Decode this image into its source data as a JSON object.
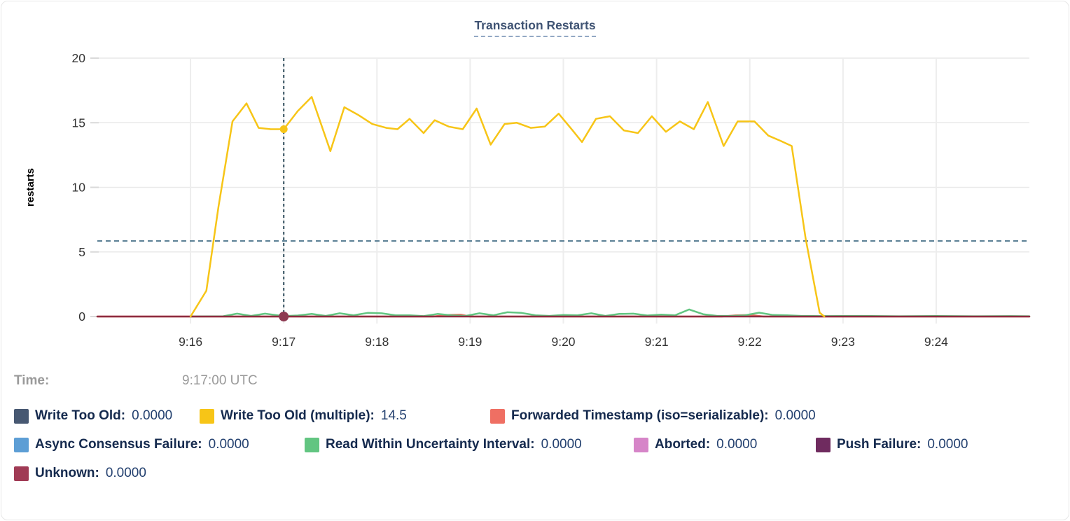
{
  "title": "Transaction Restarts",
  "tooltip": {
    "time_label": "Time:",
    "time_value": "9:17:00 UTC"
  },
  "legend": {
    "rows": [
      [
        {
          "label": "Write Too Old:",
          "value": "0.0000",
          "color": "#475872"
        },
        {
          "label": "Write Too Old (multiple):",
          "value": "14.5",
          "color": "#f7c517"
        },
        {
          "label": "Forwarded Timestamp (iso=serializable):",
          "value": "0.0000",
          "color": "#ef6f63"
        }
      ],
      [
        {
          "label": "Async Consensus Failure:",
          "value": "0.0000",
          "color": "#5d9ed5"
        },
        {
          "label": "Read Within Uncertainty Interval:",
          "value": "0.0000",
          "color": "#62c581"
        },
        {
          "label": "Aborted:",
          "value": "0.0000",
          "color": "#d685c8"
        },
        {
          "label": "Push Failure:",
          "value": "0.0000",
          "color": "#6f2b5f"
        }
      ],
      [
        {
          "label": "Unknown:",
          "value": "0.0000",
          "color": "#a03b55"
        }
      ]
    ]
  },
  "chart_data": {
    "type": "line",
    "title": "Transaction Restarts",
    "ylabel": "restarts",
    "ylim": [
      0,
      20
    ],
    "yticks": [
      0,
      5,
      10,
      15,
      20
    ],
    "x_domain_minutes": [
      15,
      25
    ],
    "xticks": [
      {
        "t": 16,
        "label": "9:16"
      },
      {
        "t": 17,
        "label": "9:17"
      },
      {
        "t": 18,
        "label": "9:18"
      },
      {
        "t": 19,
        "label": "9:19"
      },
      {
        "t": 20,
        "label": "9:20"
      },
      {
        "t": 21,
        "label": "9:21"
      },
      {
        "t": 22,
        "label": "9:22"
      },
      {
        "t": 23,
        "label": "9:23"
      },
      {
        "t": 24,
        "label": "9:24"
      }
    ],
    "grid": true,
    "legend_position": "bottom",
    "hover_time": "9:17:00 UTC",
    "hline": {
      "v": 5.85,
      "color": "#51788e"
    },
    "vline": {
      "t": 17,
      "color": "#33505f"
    },
    "markers": [
      {
        "t": 17,
        "v": 14.5,
        "color": "#f7c517",
        "r": 5.5
      },
      {
        "t": 17,
        "v": 0,
        "color": "#8e3a52",
        "r": 7
      }
    ],
    "series": [
      {
        "name": "Forwarded Timestamp (iso=serializable)",
        "color": "#ef6f63",
        "width": 2.5,
        "points": [
          [
            15.0,
            0
          ],
          [
            18.6,
            0
          ],
          [
            18.75,
            0.12
          ],
          [
            18.9,
            0.15
          ],
          [
            19.0,
            0
          ],
          [
            21.7,
            0
          ],
          [
            21.85,
            0.1
          ],
          [
            22.0,
            0.12
          ],
          [
            22.15,
            0
          ],
          [
            25.0,
            0
          ]
        ]
      },
      {
        "name": "Read Within Uncertainty Interval",
        "color": "#62c581",
        "width": 2.5,
        "points": [
          [
            16.0,
            0
          ],
          [
            16.35,
            0.02
          ],
          [
            16.5,
            0.22
          ],
          [
            16.65,
            0.05
          ],
          [
            16.8,
            0.22
          ],
          [
            17.0,
            0.03
          ],
          [
            17.15,
            0.08
          ],
          [
            17.3,
            0.2
          ],
          [
            17.45,
            0.05
          ],
          [
            17.6,
            0.25
          ],
          [
            17.75,
            0.1
          ],
          [
            17.9,
            0.28
          ],
          [
            18.05,
            0.25
          ],
          [
            18.2,
            0.1
          ],
          [
            18.35,
            0.1
          ],
          [
            18.5,
            0.03
          ],
          [
            18.65,
            0.2
          ],
          [
            18.8,
            0.1
          ],
          [
            18.95,
            0.05
          ],
          [
            19.1,
            0.25
          ],
          [
            19.25,
            0.1
          ],
          [
            19.4,
            0.33
          ],
          [
            19.55,
            0.28
          ],
          [
            19.7,
            0.1
          ],
          [
            19.85,
            0.05
          ],
          [
            20.0,
            0.12
          ],
          [
            20.15,
            0.1
          ],
          [
            20.3,
            0.25
          ],
          [
            20.45,
            0.05
          ],
          [
            20.6,
            0.2
          ],
          [
            20.75,
            0.22
          ],
          [
            20.9,
            0.08
          ],
          [
            21.05,
            0.15
          ],
          [
            21.2,
            0.1
          ],
          [
            21.35,
            0.55
          ],
          [
            21.5,
            0.18
          ],
          [
            21.65,
            0.05
          ],
          [
            21.8,
            0.05
          ],
          [
            21.95,
            0.1
          ],
          [
            22.1,
            0.3
          ],
          [
            22.25,
            0.12
          ],
          [
            22.4,
            0.1
          ],
          [
            22.55,
            0.05
          ],
          [
            22.8,
            0.03
          ],
          [
            23.2,
            0.05
          ],
          [
            23.6,
            0.02
          ],
          [
            24.0,
            0.04
          ],
          [
            24.4,
            0.02
          ],
          [
            24.8,
            0.03
          ],
          [
            25.0,
            0.02
          ]
        ]
      },
      {
        "name": "Unknown (zero baseline)",
        "color": "#8e2c40",
        "width": 2.5,
        "points": [
          [
            15.0,
            0
          ],
          [
            25.0,
            0
          ]
        ]
      },
      {
        "name": "Write Too Old (multiple)",
        "color": "#f7c517",
        "width": 2.5,
        "points": [
          [
            16.0,
            0
          ],
          [
            16.17,
            2.0
          ],
          [
            16.3,
            8.5
          ],
          [
            16.45,
            15.1
          ],
          [
            16.6,
            16.5
          ],
          [
            16.73,
            14.6
          ],
          [
            16.86,
            14.5
          ],
          [
            17.0,
            14.5
          ],
          [
            17.15,
            15.9
          ],
          [
            17.3,
            17.0
          ],
          [
            17.5,
            12.8
          ],
          [
            17.65,
            16.2
          ],
          [
            17.8,
            15.6
          ],
          [
            17.95,
            14.9
          ],
          [
            18.1,
            14.6
          ],
          [
            18.22,
            14.5
          ],
          [
            18.35,
            15.3
          ],
          [
            18.5,
            14.2
          ],
          [
            18.62,
            15.2
          ],
          [
            18.77,
            14.7
          ],
          [
            18.92,
            14.5
          ],
          [
            19.07,
            16.1
          ],
          [
            19.22,
            13.3
          ],
          [
            19.37,
            14.9
          ],
          [
            19.5,
            15.0
          ],
          [
            19.65,
            14.6
          ],
          [
            19.8,
            14.7
          ],
          [
            19.95,
            15.7
          ],
          [
            20.1,
            14.4
          ],
          [
            20.2,
            13.5
          ],
          [
            20.35,
            15.3
          ],
          [
            20.5,
            15.5
          ],
          [
            20.65,
            14.4
          ],
          [
            20.8,
            14.2
          ],
          [
            20.95,
            15.5
          ],
          [
            21.1,
            14.3
          ],
          [
            21.25,
            15.1
          ],
          [
            21.4,
            14.5
          ],
          [
            21.55,
            16.6
          ],
          [
            21.72,
            13.2
          ],
          [
            21.87,
            15.1
          ],
          [
            22.05,
            15.1
          ],
          [
            22.2,
            14.0
          ],
          [
            22.33,
            13.6
          ],
          [
            22.45,
            13.2
          ],
          [
            22.6,
            6.0
          ],
          [
            22.75,
            0.3
          ],
          [
            22.8,
            0
          ]
        ]
      }
    ]
  },
  "colors": {
    "title": "#3f5373",
    "legend_label": "#152a4e",
    "legend_value": "#23406f",
    "time_text": "#9a9a9a",
    "grid": "#e9e9e9",
    "tick_text": "#333333"
  }
}
